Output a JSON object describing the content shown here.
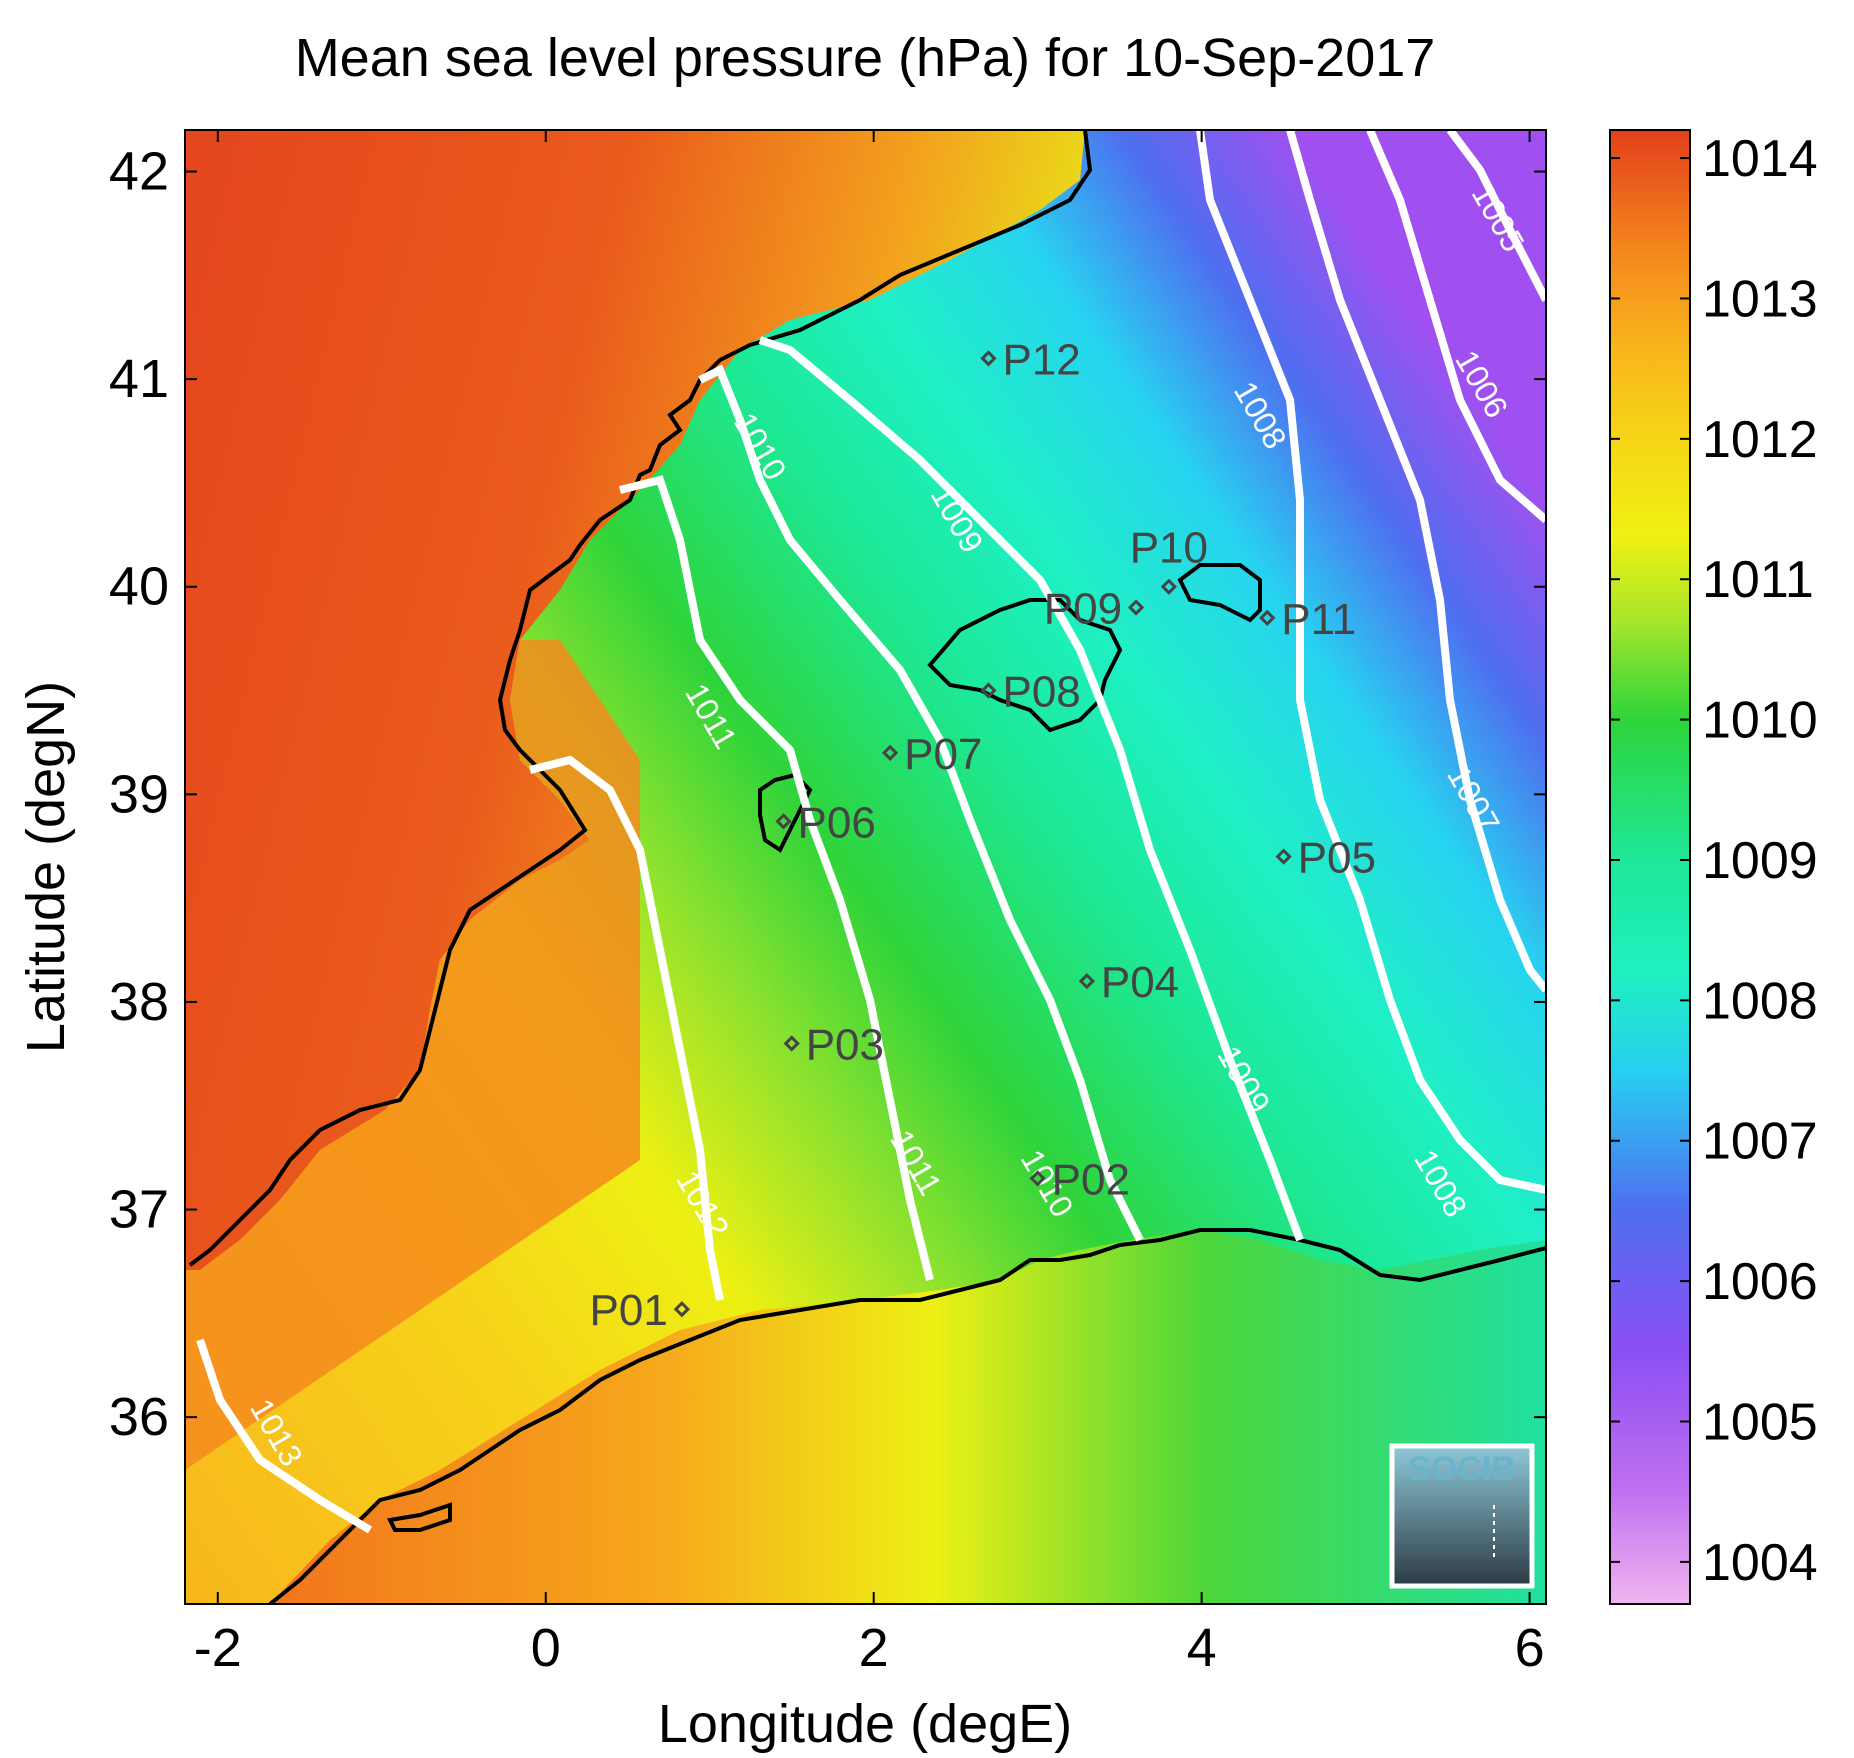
{
  "title": "Mean sea level pressure (hPa) for 10-Sep-2017",
  "x_axis": {
    "label": "Longitude (degE)",
    "range": [
      -2.2,
      6.1
    ],
    "ticks": [
      {
        "value": -2,
        "label": "-2"
      },
      {
        "value": 0,
        "label": "0"
      },
      {
        "value": 2,
        "label": "2"
      },
      {
        "value": 4,
        "label": "4"
      },
      {
        "value": 6,
        "label": "6"
      }
    ]
  },
  "y_axis": {
    "label": "Latitude (degN)",
    "range": [
      35.1,
      42.2
    ],
    "ticks": [
      {
        "value": 36,
        "label": "36"
      },
      {
        "value": 37,
        "label": "37"
      },
      {
        "value": 38,
        "label": "38"
      },
      {
        "value": 39,
        "label": "39"
      },
      {
        "value": 40,
        "label": "40"
      },
      {
        "value": 41,
        "label": "41"
      },
      {
        "value": 42,
        "label": "42"
      }
    ]
  },
  "colorbar": {
    "range": [
      1003.7,
      1014.2
    ],
    "ticks": [
      {
        "value": 1004,
        "label": "1004"
      },
      {
        "value": 1005,
        "label": "1005"
      },
      {
        "value": 1006,
        "label": "1006"
      },
      {
        "value": 1007,
        "label": "1007"
      },
      {
        "value": 1008,
        "label": "1008"
      },
      {
        "value": 1009,
        "label": "1009"
      },
      {
        "value": 1010,
        "label": "1010"
      },
      {
        "value": 1011,
        "label": "1011"
      },
      {
        "value": 1012,
        "label": "1012"
      },
      {
        "value": 1013,
        "label": "1013"
      },
      {
        "value": 1014,
        "label": "1014"
      }
    ],
    "colors": [
      {
        "value": 1003.7,
        "color": "#f0b4f0"
      },
      {
        "value": 1004.5,
        "color": "#c070f0"
      },
      {
        "value": 1005.5,
        "color": "#8c4ff2"
      },
      {
        "value": 1006.5,
        "color": "#4f6ef0"
      },
      {
        "value": 1007.5,
        "color": "#27d0f0"
      },
      {
        "value": 1008.2,
        "color": "#1ff0c0"
      },
      {
        "value": 1009.0,
        "color": "#1ee898"
      },
      {
        "value": 1010.0,
        "color": "#2ed43a"
      },
      {
        "value": 1010.7,
        "color": "#a6e62a"
      },
      {
        "value": 1011.3,
        "color": "#f0f012"
      },
      {
        "value": 1012.0,
        "color": "#f7d517"
      },
      {
        "value": 1012.7,
        "color": "#f7b21c"
      },
      {
        "value": 1013.3,
        "color": "#f58a1c"
      },
      {
        "value": 1014.2,
        "color": "#e2401c"
      }
    ]
  },
  "contour_labels": [
    {
      "text": "1013",
      "lon": -1.7,
      "lat": 35.9
    },
    {
      "text": "1012",
      "lon": 0.9,
      "lat": 37.0
    },
    {
      "text": "1011",
      "lon": 0.95,
      "lat": 39.35
    },
    {
      "text": "1011",
      "lon": 2.2,
      "lat": 37.2
    },
    {
      "text": "1010",
      "lon": 1.25,
      "lat": 40.65
    },
    {
      "text": "1010",
      "lon": 3.0,
      "lat": 37.1
    },
    {
      "text": "1009",
      "lon": 2.45,
      "lat": 40.3
    },
    {
      "text": "1009",
      "lon": 4.2,
      "lat": 37.6
    },
    {
      "text": "1008",
      "lon": 4.3,
      "lat": 40.8
    },
    {
      "text": "1008",
      "lon": 5.4,
      "lat": 37.1
    },
    {
      "text": "1007",
      "lon": 5.6,
      "lat": 38.95
    },
    {
      "text": "1006",
      "lon": 5.65,
      "lat": 40.95
    },
    {
      "text": "1005",
      "lon": 5.75,
      "lat": 41.75
    }
  ],
  "stations": [
    {
      "id": "P01",
      "lon": 0.83,
      "lat": 36.52,
      "label_side": "left"
    },
    {
      "id": "P02",
      "lon": 3.0,
      "lat": 37.15,
      "label_side": "right"
    },
    {
      "id": "P03",
      "lon": 1.5,
      "lat": 37.8,
      "label_side": "right"
    },
    {
      "id": "P04",
      "lon": 3.3,
      "lat": 38.1,
      "label_side": "right"
    },
    {
      "id": "P05",
      "lon": 4.5,
      "lat": 38.7,
      "label_side": "right"
    },
    {
      "id": "P06",
      "lon": 1.45,
      "lat": 38.87,
      "label_side": "right"
    },
    {
      "id": "P07",
      "lon": 2.1,
      "lat": 39.2,
      "label_side": "right"
    },
    {
      "id": "P08",
      "lon": 2.7,
      "lat": 39.5,
      "label_side": "right"
    },
    {
      "id": "P09",
      "lon": 3.6,
      "lat": 39.9,
      "label_side": "left"
    },
    {
      "id": "P10",
      "lon": 3.8,
      "lat": 40.0,
      "label_side": "above"
    },
    {
      "id": "P11",
      "lon": 4.4,
      "lat": 39.85,
      "label_side": "right"
    },
    {
      "id": "P12",
      "lon": 2.7,
      "lat": 41.1,
      "label_side": "right"
    }
  ],
  "logo": {
    "text": "SOCIB",
    "color": "#6ab4cc"
  },
  "colors": {
    "coastline": "#000000",
    "contour": "#ffffff",
    "station_marker": "#444444",
    "station_label": "#444444"
  }
}
